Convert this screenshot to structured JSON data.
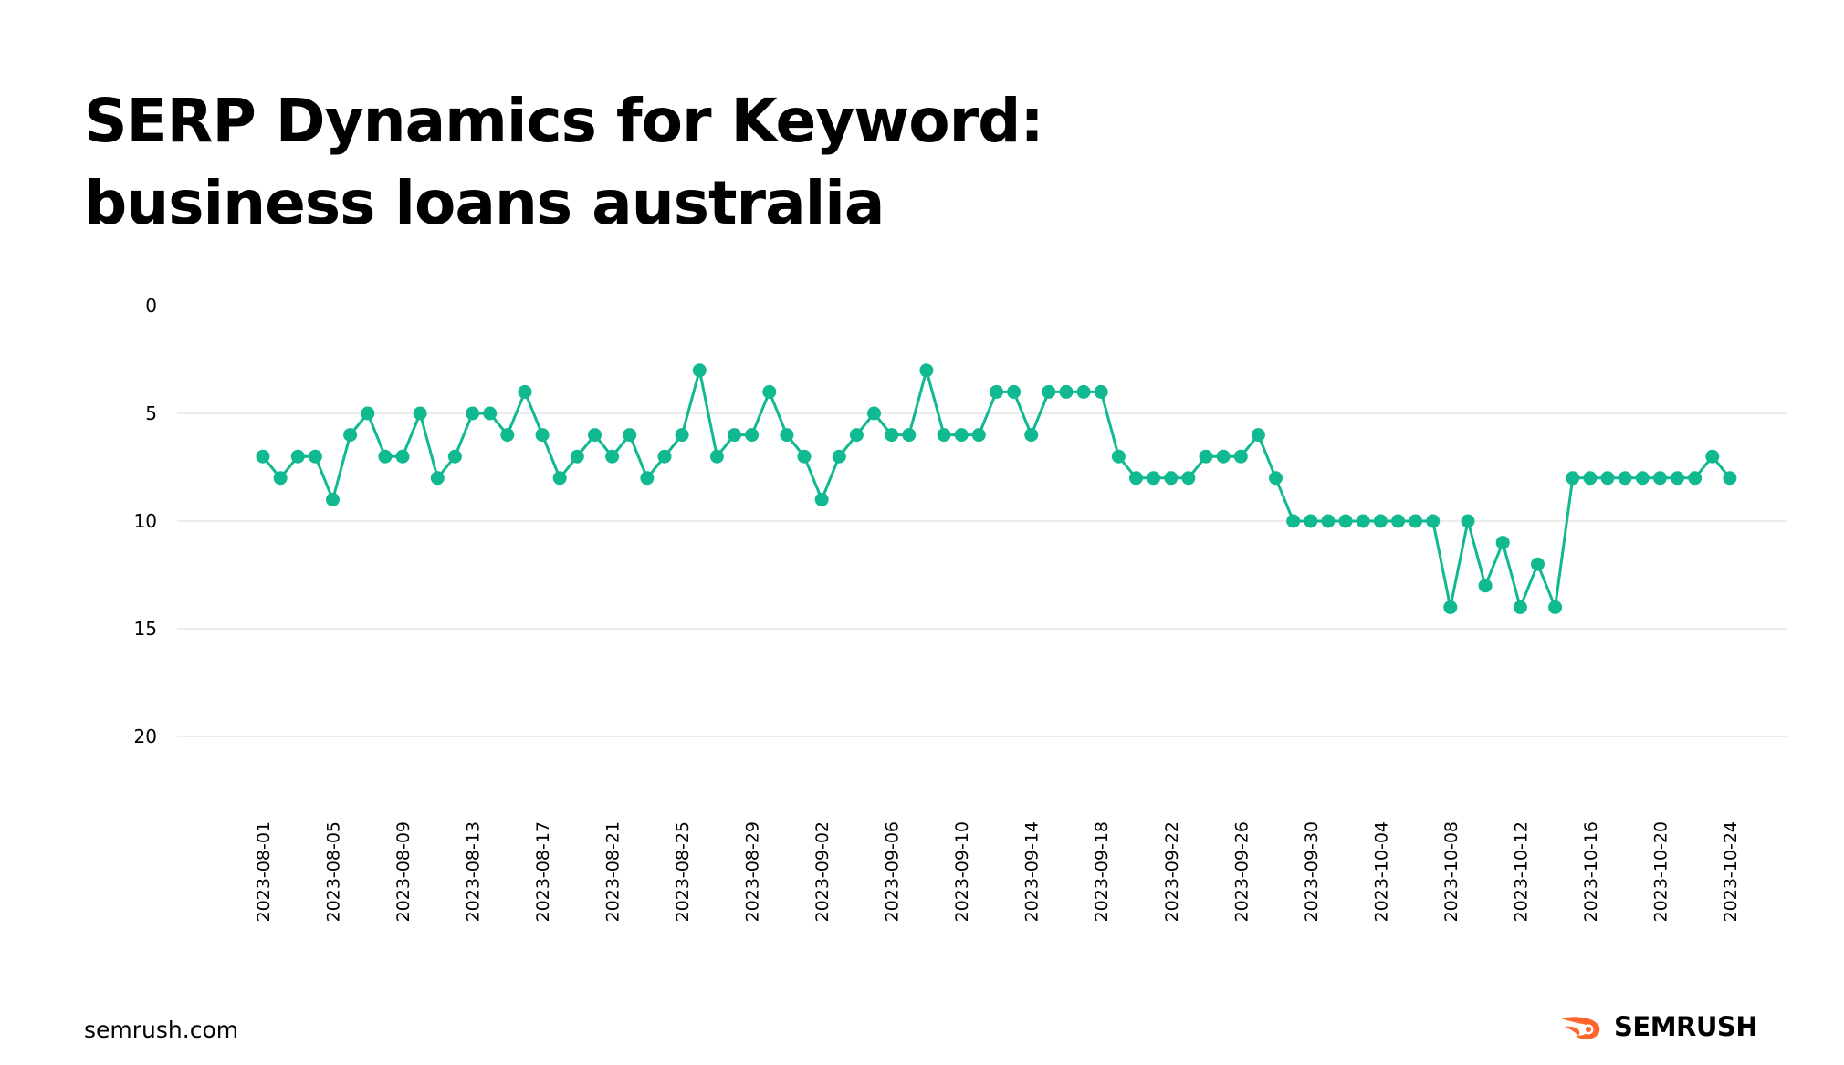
{
  "title": {
    "line1": "SERP Dynamics for Keyword:",
    "line2": "business loans australia"
  },
  "footer": {
    "site": "semrush.com",
    "brand": "SEMRUSH",
    "brand_icon": "semrush-flame-icon",
    "brand_color": "#ff642d"
  },
  "chart_data": {
    "type": "line",
    "title": "SERP Dynamics for Keyword: business loans australia",
    "xlabel": "",
    "ylabel": "",
    "y_inverted": true,
    "ylim": [
      0,
      22
    ],
    "yticks": [
      0,
      5,
      10,
      15,
      20
    ],
    "grid": true,
    "line_color": "#10b990",
    "x_tick_labels": [
      "2023-08-01",
      "2023-08-05",
      "2023-08-09",
      "2023-08-13",
      "2023-08-17",
      "2023-08-21",
      "2023-08-25",
      "2023-08-29",
      "2023-09-02",
      "2023-09-06",
      "2023-09-10",
      "2023-09-14",
      "2023-09-18",
      "2023-09-22",
      "2023-09-26",
      "2023-09-30",
      "2023-10-04",
      "2023-10-08",
      "2023-10-12",
      "2023-10-16",
      "2023-10-20",
      "2023-10-24"
    ],
    "x_start": "2023-08-01",
    "x_end": "2023-10-25",
    "series": [
      {
        "name": "",
        "values": [
          7,
          8,
          7,
          7,
          9,
          6,
          5,
          7,
          7,
          5,
          8,
          7,
          5,
          5,
          6,
          4,
          6,
          8,
          7,
          6,
          7,
          6,
          8,
          7,
          6,
          3,
          7,
          6,
          6,
          4,
          6,
          7,
          9,
          7,
          6,
          5,
          6,
          6,
          3,
          6,
          6,
          6,
          4,
          4,
          6,
          4,
          4,
          4,
          4,
          7,
          8,
          8,
          8,
          8,
          7,
          7,
          7,
          6,
          8,
          10,
          10,
          10,
          10,
          10,
          10,
          10,
          10,
          10,
          14,
          10,
          13,
          11,
          14,
          12,
          14,
          8,
          8,
          8,
          8,
          8,
          8,
          8,
          8,
          7,
          8
        ]
      }
    ]
  }
}
